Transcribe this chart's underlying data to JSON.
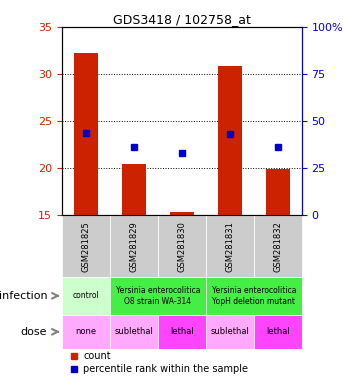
{
  "title": "GDS3418 / 102758_at",
  "samples": [
    "GSM281825",
    "GSM281829",
    "GSM281830",
    "GSM281831",
    "GSM281832"
  ],
  "bar_heights": [
    32.2,
    20.4,
    15.3,
    30.9,
    19.9
  ],
  "bar_base": 15,
  "percentile_values": [
    23.7,
    22.3,
    21.6,
    23.6,
    22.3
  ],
  "ylim_left": [
    15,
    35
  ],
  "ylim_right": [
    0,
    100
  ],
  "yticks_left": [
    15,
    20,
    25,
    30,
    35
  ],
  "yticks_right": [
    0,
    25,
    50,
    75,
    100
  ],
  "ytick_labels_right": [
    "0",
    "25",
    "50",
    "75",
    "100%"
  ],
  "grid_lines": [
    20,
    25,
    30
  ],
  "bar_color": "#cc2200",
  "percentile_color": "#0000cc",
  "infection_row": {
    "label": "infection",
    "cells": [
      {
        "text": "control",
        "color": "#ccffcc",
        "span": 1
      },
      {
        "text": "Yersinia enterocolitica\nO8 strain WA-314",
        "color": "#44dd44",
        "span": 2
      },
      {
        "text": "Yersinia enterocolitica\nYopH deletion mutant",
        "color": "#44dd44",
        "span": 2
      }
    ]
  },
  "dose_row": {
    "label": "dose",
    "cells": [
      {
        "text": "none",
        "color": "#ffaaff",
        "span": 1
      },
      {
        "text": "sublethal",
        "color": "#ffaaff",
        "span": 1
      },
      {
        "text": "lethal",
        "color": "#ff44ff",
        "span": 1
      },
      {
        "text": "sublethal",
        "color": "#ffaaff",
        "span": 1
      },
      {
        "text": "lethal",
        "color": "#ff44ff",
        "span": 1
      }
    ]
  },
  "legend_items": [
    {
      "color": "#cc2200",
      "label": "count"
    },
    {
      "color": "#0000cc",
      "label": "percentile rank within the sample"
    }
  ],
  "sample_header_color": "#cccccc",
  "left_axis_color": "#cc2200",
  "right_axis_color": "#0000cc"
}
